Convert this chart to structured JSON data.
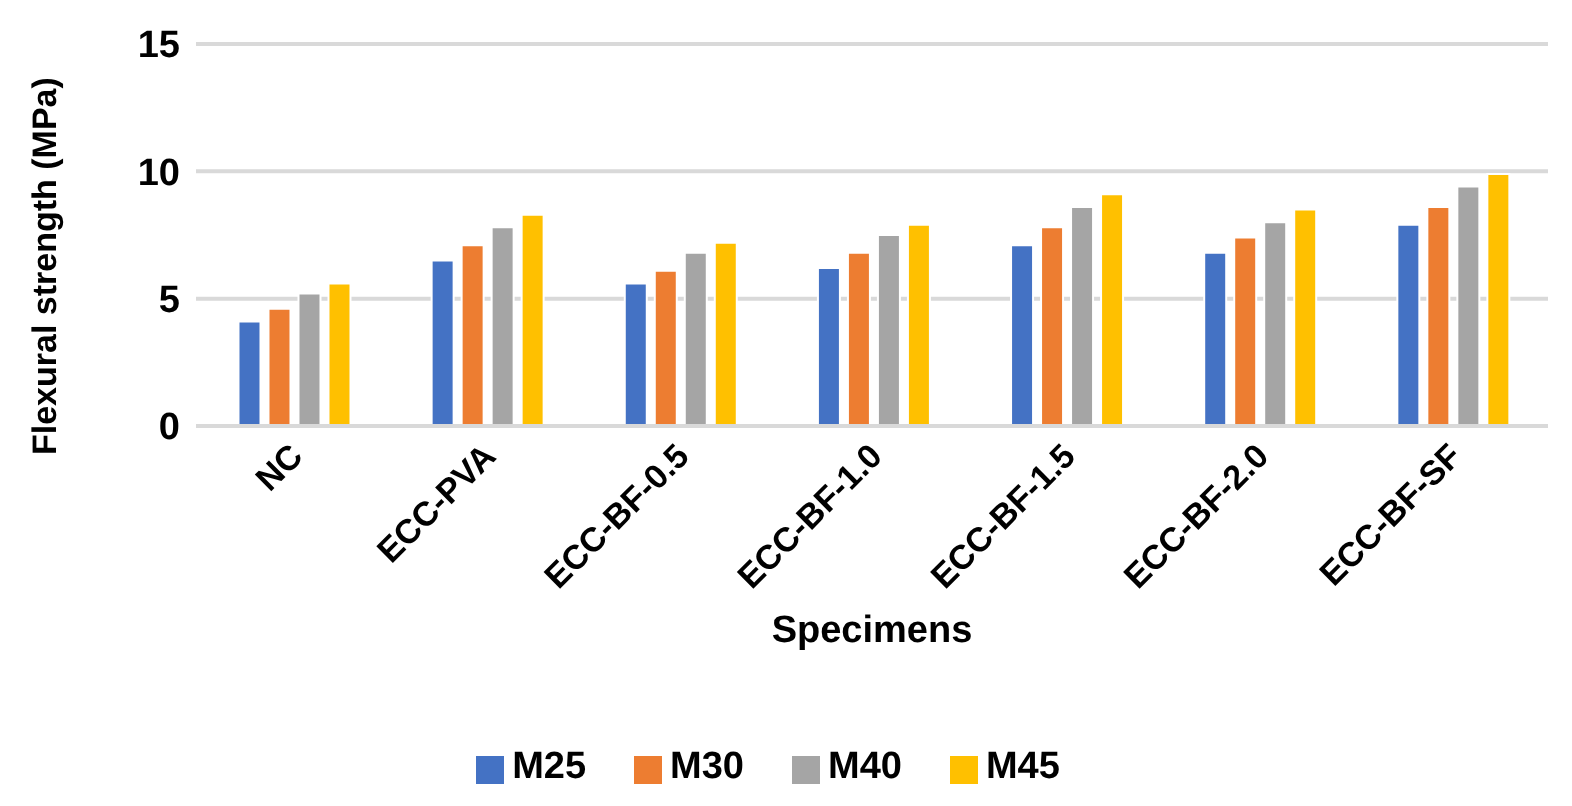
{
  "chart_data": {
    "type": "bar",
    "xlabel": "Specimens",
    "ylabel": "Flexural strength (MPa)",
    "categories": [
      "NC",
      "ECC-PVA",
      "ECC-BF-0.5",
      "ECC-BF-1.0",
      "ECC-BF-1.5",
      "ECC-BF-2.0",
      "ECC-BF-SF"
    ],
    "series": [
      {
        "name": "M25",
        "color": "#4472c4",
        "values": [
          4.1,
          6.5,
          5.6,
          6.2,
          7.1,
          6.8,
          7.9
        ]
      },
      {
        "name": "M30",
        "color": "#ed7d31",
        "values": [
          4.6,
          7.1,
          6.1,
          6.8,
          7.8,
          7.4,
          8.6
        ]
      },
      {
        "name": "M40",
        "color": "#a5a5a5",
        "values": [
          5.2,
          7.8,
          6.8,
          7.5,
          8.6,
          8.0,
          9.4
        ]
      },
      {
        "name": "M45",
        "color": "#ffc000",
        "values": [
          5.6,
          8.3,
          7.2,
          7.9,
          9.1,
          8.5,
          9.9
        ]
      }
    ],
    "ylim": [
      0,
      15
    ],
    "yticks": [
      0,
      5,
      10,
      15
    ],
    "grid": "y",
    "legend": "bottom"
  }
}
